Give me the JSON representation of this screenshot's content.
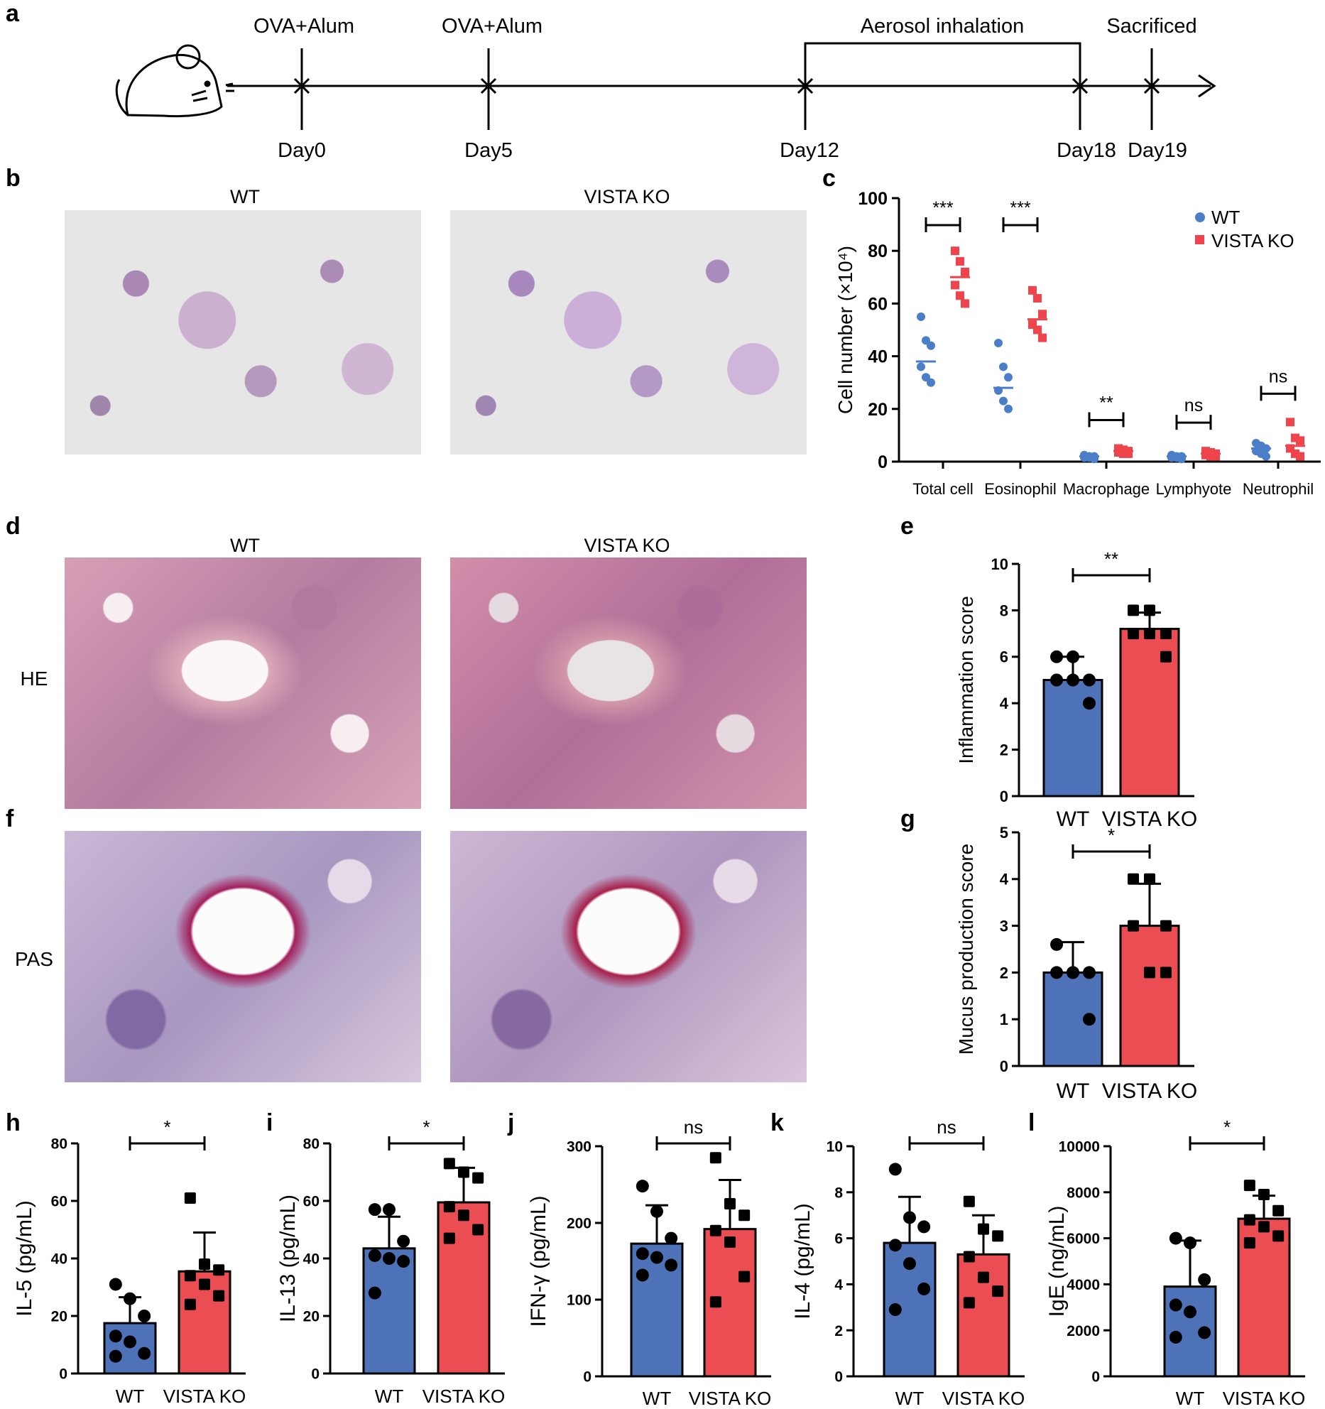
{
  "panel_labels": {
    "a": "a",
    "b": "b",
    "c": "c",
    "d": "d",
    "e": "e",
    "f": "f",
    "g": "g",
    "h": "h",
    "i": "i",
    "j": "j",
    "k": "k",
    "l": "l"
  },
  "timeline": {
    "top_labels": [
      "OVA+Alum",
      "OVA+Alum",
      "Aerosol inhalation",
      "Sacrificed"
    ],
    "days": [
      "Day0",
      "Day5",
      "Day12",
      "Day18",
      "Day19"
    ]
  },
  "micro": {
    "b_titles": [
      "WT",
      "VISTA KO"
    ],
    "d_titles": [
      "WT",
      "VISTA KO"
    ],
    "row_labels": {
      "he": "HE",
      "pas": "PAS"
    }
  },
  "colors": {
    "wt": "#4e72b8",
    "ko": "#eb4d52",
    "wt_dot": "#4a7ec8",
    "ko_dot": "#f0444c"
  },
  "chart_data": [
    {
      "id": "c",
      "type": "scatter",
      "ylabel": "Cell number (×10⁴)",
      "ylim": [
        0,
        100
      ],
      "yticks": [
        "0",
        "20",
        "40",
        "60",
        "80",
        "100"
      ],
      "categories": [
        "Total cell",
        "Eosinophil",
        "Macrophage",
        "Lymphyote",
        "Neutrophil"
      ],
      "legend": [
        "WT",
        "VISTA KO"
      ],
      "legend_position": "top-right",
      "significance": [
        "***",
        "***",
        "**",
        "ns",
        "ns"
      ],
      "series": [
        {
          "name": "WT",
          "means": [
            38,
            28,
            2,
            2,
            5
          ],
          "points": [
            [
              55,
              46,
              44,
              36,
              32,
              30
            ],
            [
              45,
              36,
              32,
              27,
              23,
              20
            ],
            [
              2.5,
              2,
              2,
              1.5,
              1.5,
              1
            ],
            [
              2.5,
              2,
              2,
              1.5,
              1.5,
              1
            ],
            [
              7,
              6,
              5,
              4,
              3,
              2
            ]
          ]
        },
        {
          "name": "VISTA KO",
          "means": [
            70,
            54,
            4,
            3,
            6
          ],
          "points": [
            [
              80,
              76,
              72,
              67,
              63,
              60
            ],
            [
              65,
              62,
              56,
              52,
              50,
              47
            ],
            [
              5,
              4.5,
              4,
              3.5,
              3,
              3
            ],
            [
              4,
              3.5,
              3,
              2.5,
              2,
              2
            ],
            [
              15,
              9,
              8,
              5,
              3,
              2
            ]
          ]
        }
      ]
    },
    {
      "id": "e",
      "type": "bar",
      "categories": [
        "WT",
        "VISTA KO"
      ],
      "ylabel": "Inflammation score",
      "ylim": [
        0,
        10
      ],
      "yticks": [
        "0",
        "2",
        "4",
        "6",
        "8",
        "10"
      ],
      "significance": "**",
      "values": [
        5.0,
        7.2
      ],
      "errors": [
        1.0,
        0.7
      ],
      "points": [
        [
          6,
          6,
          5,
          5,
          5,
          4
        ],
        [
          8,
          8,
          7,
          7,
          7,
          6
        ]
      ]
    },
    {
      "id": "g",
      "type": "bar",
      "categories": [
        "WT",
        "VISTA KO"
      ],
      "ylabel": "Mucus production score",
      "ylim": [
        0,
        5
      ],
      "yticks": [
        "0",
        "1",
        "2",
        "3",
        "4",
        "5"
      ],
      "significance": "*",
      "values": [
        2.0,
        3.0
      ],
      "errors": [
        0.65,
        0.9
      ],
      "points": [
        [
          2.6,
          2,
          2,
          2,
          2,
          1
        ],
        [
          4,
          4,
          3,
          3,
          2,
          2
        ]
      ]
    },
    {
      "id": "h",
      "type": "bar",
      "categories": [
        "WT",
        "VISTA KO"
      ],
      "ylabel": "IL-5 (pg/mL)",
      "ylim": [
        0,
        80
      ],
      "yticks": [
        "0",
        "20",
        "40",
        "60",
        "80"
      ],
      "significance": "*",
      "values": [
        17.5,
        35.5
      ],
      "errors": [
        9,
        13.5
      ],
      "points": [
        [
          31,
          26,
          20,
          13,
          11,
          7,
          6
        ],
        [
          61,
          38,
          36,
          34,
          31,
          27,
          24
        ]
      ]
    },
    {
      "id": "i",
      "type": "bar",
      "categories": [
        "WT",
        "VISTA KO"
      ],
      "ylabel": "IL-13 (pg/mL)",
      "ylim": [
        0,
        80
      ],
      "yticks": [
        "0",
        "20",
        "40",
        "60",
        "80"
      ],
      "significance": "*",
      "values": [
        43.5,
        59.5
      ],
      "errors": [
        11,
        12
      ],
      "points": [
        [
          57,
          57,
          46,
          41,
          40,
          39,
          28
        ],
        [
          73,
          70,
          68,
          58,
          55,
          50,
          47
        ]
      ]
    },
    {
      "id": "j",
      "type": "bar",
      "categories": [
        "WT",
        "VISTA KO"
      ],
      "ylabel": "IFN-γ (pg/mL)",
      "ylim": [
        0,
        300
      ],
      "yticks": [
        "0",
        "100",
        "200",
        "300"
      ],
      "significance": "ns",
      "values": [
        173,
        192
      ],
      "errors": [
        50,
        64
      ],
      "points": [
        [
          248,
          215,
          180,
          160,
          155,
          145,
          132
        ],
        [
          285,
          225,
          210,
          190,
          175,
          130,
          97
        ]
      ]
    },
    {
      "id": "k",
      "type": "bar",
      "categories": [
        "WT",
        "VISTA KO"
      ],
      "ylabel": "IL-4 (pg/mL)",
      "ylim": [
        0,
        10
      ],
      "yticks": [
        "0",
        "2",
        "4",
        "6",
        "8",
        "10"
      ],
      "significance": "ns",
      "values": [
        5.8,
        5.3
      ],
      "errors": [
        2.0,
        1.7
      ],
      "points": [
        [
          9.0,
          6.9,
          6.5,
          5.7,
          4.9,
          3.8,
          2.9
        ],
        [
          7.6,
          6.4,
          6.1,
          5.2,
          4.3,
          3.7,
          3.2
        ]
      ]
    },
    {
      "id": "l",
      "type": "bar",
      "categories": [
        "WT",
        "VISTA KO"
      ],
      "ylabel": "IgE (ng/mL)",
      "ylim": [
        0,
        10000
      ],
      "yticks": [
        "0",
        "2000",
        "4000",
        "6000",
        "8000",
        "10000"
      ],
      "significance": "*",
      "values": [
        3900,
        6850
      ],
      "errors": [
        2000,
        1000
      ],
      "points": [
        [
          6000,
          5800,
          4200,
          3100,
          2800,
          1900,
          1700
        ],
        [
          8300,
          7900,
          7200,
          6800,
          6500,
          6100,
          5800
        ]
      ]
    }
  ]
}
